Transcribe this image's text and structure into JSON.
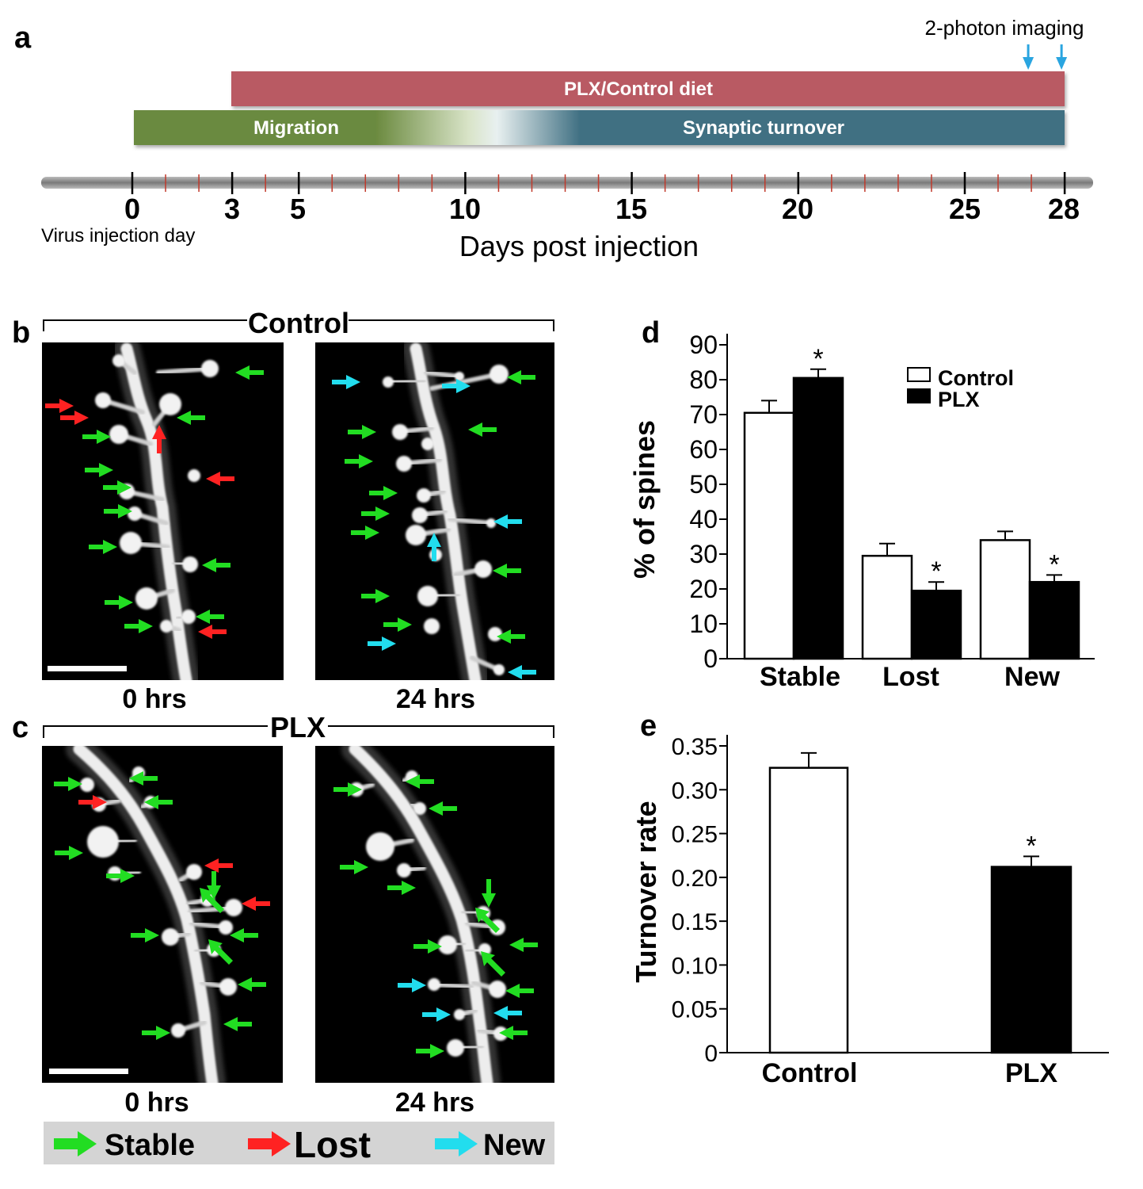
{
  "panel_letters": {
    "a": "a",
    "b": "b",
    "c": "c",
    "d": "d",
    "e": "e"
  },
  "timeline": {
    "imaging_label": "2-photon imaging",
    "imaging_days": [
      27,
      28
    ],
    "plx_bar_label": "PLX/Control diet",
    "plx_bar_days": [
      3,
      28
    ],
    "migration_label": "Migration",
    "turnover_label": "Synaptic turnover",
    "migration_bar_days": [
      0,
      28
    ],
    "ticks": [
      "0",
      "3",
      "5",
      "10",
      "15",
      "20",
      "25",
      "28"
    ],
    "injection_label": "Virus injection day",
    "xlabel": "Days post injection",
    "colors": {
      "plx": "#b95a64",
      "migration": "#6b8a3f",
      "turnover": "#3f6f82",
      "imaging_arrow": "#2aa5e0"
    }
  },
  "micrographs": {
    "control_header": "Control",
    "plx_header": "PLX",
    "time_labels": [
      "0 hrs",
      "24 hrs",
      "0 hrs",
      "24 hrs"
    ],
    "arrow_colors": {
      "stable": "#22dd22",
      "lost": "#ff2222",
      "new": "#22ddee"
    }
  },
  "legend": {
    "items": [
      {
        "label": "Stable",
        "color": "#22dd22"
      },
      {
        "label": "Lost",
        "color": "#ff2222"
      },
      {
        "label": "New",
        "color": "#22ddee"
      }
    ]
  },
  "chart_data": [
    {
      "panel": "d",
      "type": "bar",
      "categories": [
        "Stable",
        "Lost",
        "New"
      ],
      "series": [
        {
          "name": "Control",
          "values": [
            70.5,
            29.5,
            34
          ],
          "errors": [
            3.5,
            3.5,
            2.5
          ],
          "color": "#ffffff"
        },
        {
          "name": "PLX",
          "values": [
            80.5,
            19.5,
            22
          ],
          "errors": [
            2.5,
            2.5,
            2
          ],
          "color": "#000000"
        }
      ],
      "significance": [
        "*",
        "*",
        "*"
      ],
      "xlabel": "",
      "ylabel": "% of spines",
      "ylim": [
        0,
        90
      ],
      "yticks": [
        "0",
        "10",
        "20",
        "30",
        "40",
        "50",
        "60",
        "70",
        "80",
        "90"
      ],
      "legend_position": "top-right",
      "grid": false
    },
    {
      "panel": "e",
      "type": "bar",
      "categories": [
        "Control",
        "PLX"
      ],
      "values": [
        0.325,
        0.212
      ],
      "errors": [
        0.017,
        0.012
      ],
      "colors": [
        "#ffffff",
        "#000000"
      ],
      "significance": [
        "",
        "*"
      ],
      "xlabel": "",
      "ylabel": "Turnover rate",
      "ylim": [
        0,
        0.35
      ],
      "yticks": [
        "0",
        "0.05",
        "0.10",
        "0.15",
        "0.20",
        "0.25",
        "0.30",
        "0.35"
      ],
      "grid": false
    }
  ]
}
